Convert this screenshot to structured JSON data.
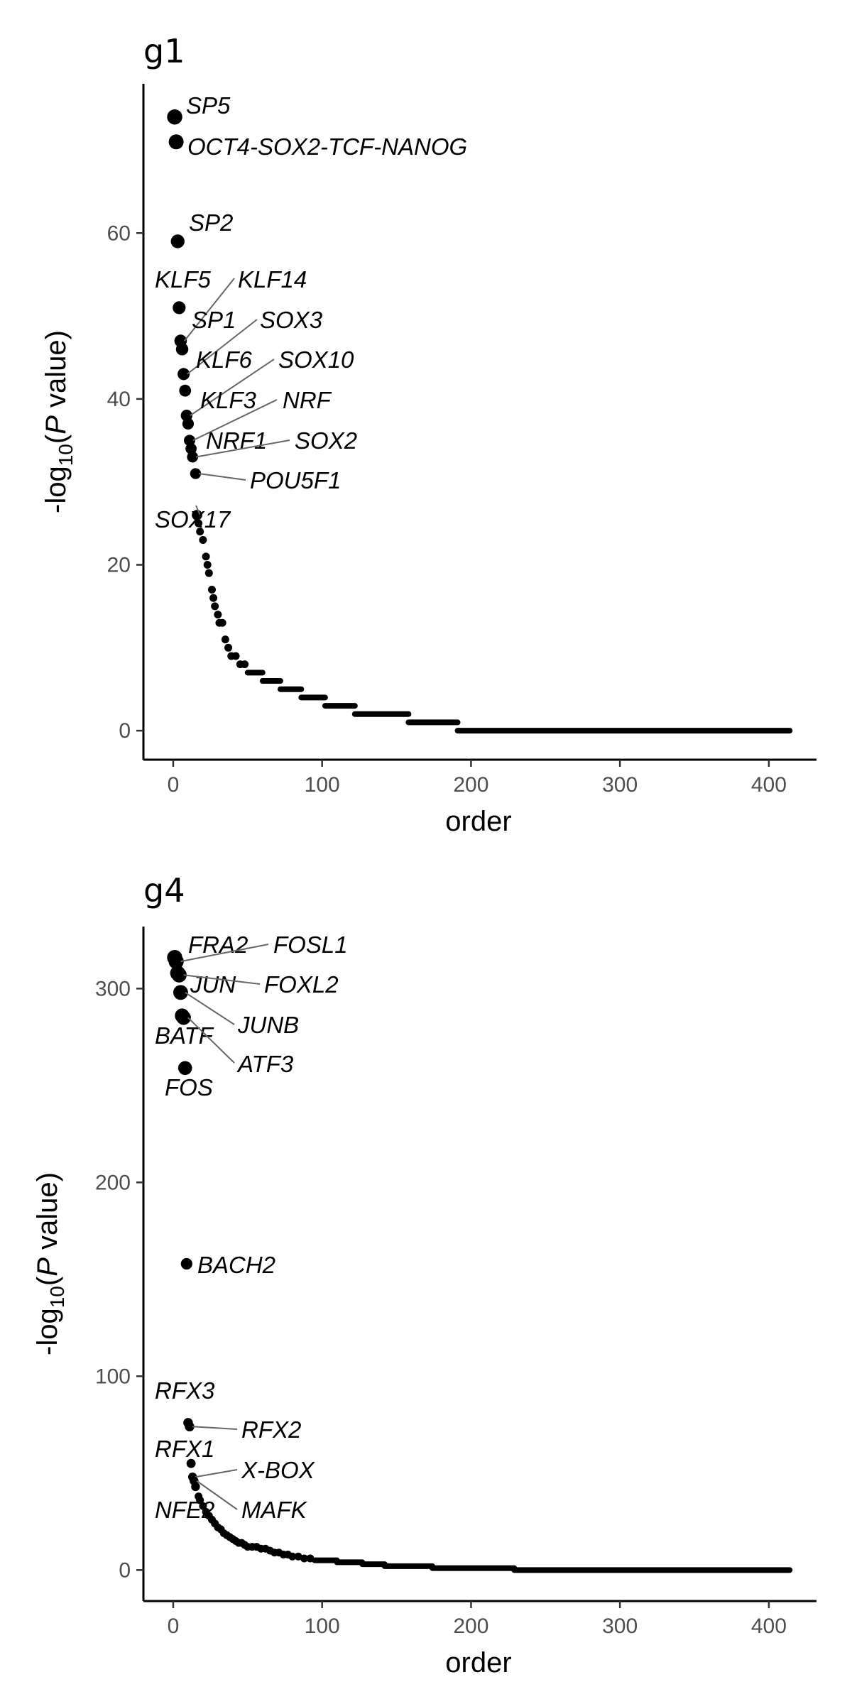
{
  "chart_data": [
    {
      "type": "scatter",
      "title": "g1",
      "xlabel": "order",
      "ylabel_parts": [
        "-log",
        "10",
        "(",
        "P",
        " value)"
      ],
      "xlim": [
        -20,
        432
      ],
      "ylim": [
        -3.5,
        78
      ],
      "xticks": [
        0,
        100,
        200,
        300,
        400
      ],
      "yticks": [
        0,
        20,
        40,
        60
      ],
      "grid": false,
      "labeled_points": [
        {
          "label": "SP5",
          "x": 1,
          "y": 74
        },
        {
          "label": "OCT4-SOX2-TCF-NANOG",
          "x": 2,
          "y": 71
        },
        {
          "label": "SP2",
          "x": 3,
          "y": 59
        },
        {
          "label": "KLF5",
          "x": 4,
          "y": 51
        },
        {
          "label": "KLF14",
          "x": 5,
          "y": 47
        },
        {
          "label": "SP1",
          "x": 6,
          "y": 46
        },
        {
          "label": "SOX3",
          "x": 7,
          "y": 43
        },
        {
          "label": "KLF6",
          "x": 8,
          "y": 41
        },
        {
          "label": "SOX10",
          "x": 9,
          "y": 38
        },
        {
          "label": "KLF3",
          "x": 10,
          "y": 37
        },
        {
          "label": "NRF",
          "x": 11,
          "y": 35
        },
        {
          "label": "NRF1",
          "x": 12,
          "y": 34
        },
        {
          "label": "SOX2",
          "x": 13,
          "y": 33
        },
        {
          "label": "POU5F1",
          "x": 15,
          "y": 31
        },
        {
          "label": "SOX17",
          "x": 16,
          "y": 26
        }
      ],
      "other_points": [
        {
          "x": 17,
          "y": 25
        },
        {
          "x": 18,
          "y": 24
        },
        {
          "x": 20,
          "y": 23
        },
        {
          "x": 22,
          "y": 21
        },
        {
          "x": 23,
          "y": 20
        },
        {
          "x": 24,
          "y": 19
        },
        {
          "x": 26,
          "y": 17
        },
        {
          "x": 27,
          "y": 16
        },
        {
          "x": 28,
          "y": 15
        },
        {
          "x": 30,
          "y": 14
        },
        {
          "x": 31,
          "y": 13
        },
        {
          "x": 33,
          "y": 13
        },
        {
          "x": 35,
          "y": 11
        },
        {
          "x": 37,
          "y": 10
        },
        {
          "x": 39,
          "y": 9
        },
        {
          "x": 42,
          "y": 9
        },
        {
          "x": 45,
          "y": 8
        },
        {
          "x": 48,
          "y": 8
        }
      ],
      "step_segments": [
        {
          "y": 7,
          "x": [
            50,
            60
          ]
        },
        {
          "y": 6,
          "x": [
            60,
            72
          ]
        },
        {
          "y": 5,
          "x": [
            72,
            86
          ]
        },
        {
          "y": 4,
          "x": [
            86,
            102
          ]
        },
        {
          "y": 3,
          "x": [
            102,
            122
          ]
        },
        {
          "y": 2,
          "x": [
            122,
            158
          ]
        },
        {
          "y": 1,
          "x": [
            158,
            191
          ]
        },
        {
          "y": 0,
          "x": [
            191,
            414
          ]
        }
      ]
    },
    {
      "type": "scatter",
      "title": "g4",
      "xlabel": "order",
      "ylabel_parts": [
        "-log",
        "10",
        "(",
        "P",
        " value)"
      ],
      "xlim": [
        -20,
        432
      ],
      "ylim": [
        -16,
        332
      ],
      "xticks": [
        0,
        100,
        200,
        300,
        400
      ],
      "yticks": [
        0,
        100,
        200,
        300
      ],
      "grid": false,
      "labeled_points": [
        {
          "label": "FRA2",
          "x": 1,
          "y": 316
        },
        {
          "label": "FOSL1",
          "x": 2,
          "y": 314
        },
        {
          "label": "JUN",
          "x": 3,
          "y": 308
        },
        {
          "label": "FOXL2",
          "x": 4,
          "y": 307
        },
        {
          "label": "JUNB",
          "x": 5,
          "y": 298
        },
        {
          "label": "BATF",
          "x": 6,
          "y": 286
        },
        {
          "label": "ATF3",
          "x": 7,
          "y": 285
        },
        {
          "label": "FOS",
          "x": 8,
          "y": 259
        },
        {
          "label": "BACH2",
          "x": 9,
          "y": 158
        },
        {
          "label": "RFX3",
          "x": 10,
          "y": 76
        },
        {
          "label": "RFX2",
          "x": 11,
          "y": 74
        },
        {
          "label": "RFX1",
          "x": 12,
          "y": 55
        },
        {
          "label": "X-BOX",
          "x": 13,
          "y": 48
        },
        {
          "label": "MAFK",
          "x": 14,
          "y": 46
        },
        {
          "label": "NFE2",
          "x": 15,
          "y": 43
        }
      ],
      "other_points": [
        {
          "x": 17,
          "y": 38
        },
        {
          "x": 18,
          "y": 36
        },
        {
          "x": 20,
          "y": 33
        },
        {
          "x": 22,
          "y": 30
        },
        {
          "x": 24,
          "y": 28
        },
        {
          "x": 26,
          "y": 26
        },
        {
          "x": 28,
          "y": 24
        },
        {
          "x": 30,
          "y": 22
        },
        {
          "x": 32,
          "y": 21
        },
        {
          "x": 34,
          "y": 19
        },
        {
          "x": 36,
          "y": 18
        },
        {
          "x": 38,
          "y": 17
        },
        {
          "x": 40,
          "y": 16
        },
        {
          "x": 42,
          "y": 15
        },
        {
          "x": 44,
          "y": 14
        },
        {
          "x": 46,
          "y": 14
        },
        {
          "x": 48,
          "y": 13
        },
        {
          "x": 50,
          "y": 12
        },
        {
          "x": 53,
          "y": 12
        },
        {
          "x": 56,
          "y": 12
        },
        {
          "x": 59,
          "y": 11
        },
        {
          "x": 62,
          "y": 11
        },
        {
          "x": 65,
          "y": 10
        },
        {
          "x": 68,
          "y": 9
        },
        {
          "x": 71,
          "y": 9
        },
        {
          "x": 74,
          "y": 8
        },
        {
          "x": 77,
          "y": 8
        },
        {
          "x": 80,
          "y": 7
        },
        {
          "x": 84,
          "y": 7
        },
        {
          "x": 88,
          "y": 6
        },
        {
          "x": 92,
          "y": 6
        }
      ],
      "step_segments": [
        {
          "y": 5,
          "x": [
            95,
            110
          ]
        },
        {
          "y": 4,
          "x": [
            110,
            127
          ]
        },
        {
          "y": 3,
          "x": [
            127,
            142
          ]
        },
        {
          "y": 2,
          "x": [
            142,
            174
          ]
        },
        {
          "y": 1,
          "x": [
            174,
            229
          ]
        },
        {
          "y": 0,
          "x": [
            229,
            414
          ]
        }
      ]
    }
  ]
}
